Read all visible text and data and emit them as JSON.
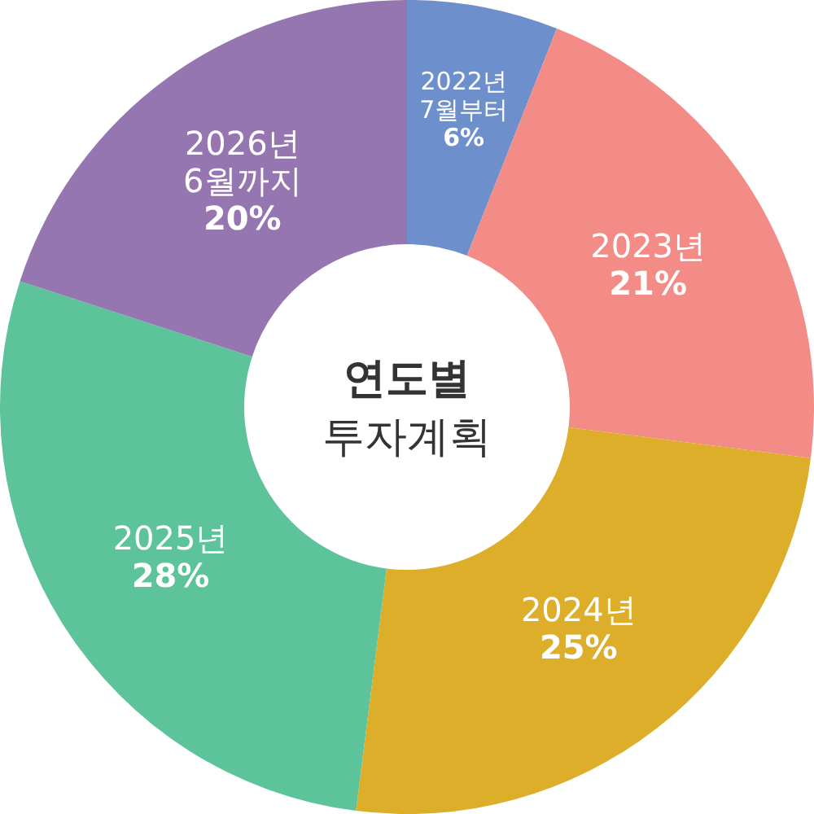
{
  "chart_data": {
    "type": "donut",
    "title": "연도별",
    "subtitle": "투자계획",
    "categories": [
      "2022년 7월부터",
      "2023년",
      "2024년",
      "2025년",
      "2026년 6월까지"
    ],
    "values": [
      6,
      21,
      25,
      28,
      20
    ],
    "colors": [
      "#6d8fcb",
      "#f38b86",
      "#dcae29",
      "#5dc39a",
      "#9676b0"
    ],
    "value_labels": [
      "6%",
      "21%",
      "25%",
      "28%",
      "20%"
    ]
  }
}
